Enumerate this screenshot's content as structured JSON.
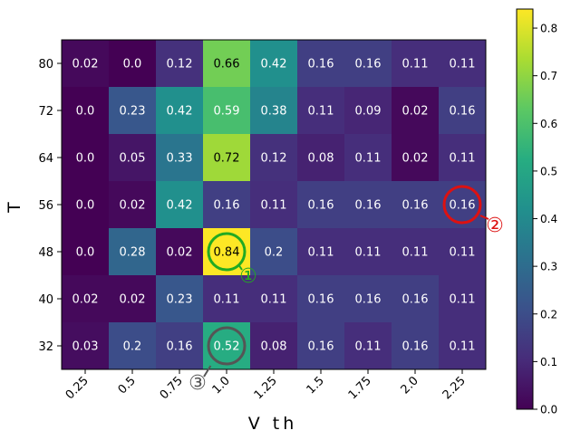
{
  "chart_data": {
    "type": "heatmap",
    "xlabel": "V th",
    "ylabel": "T",
    "x_ticks": [
      "0.25",
      "0.5",
      "0.75",
      "1.0",
      "1.25",
      "1.5",
      "1.75",
      "2.0",
      "2.25"
    ],
    "y_ticks": [
      "80",
      "72",
      "64",
      "56",
      "48",
      "40",
      "32"
    ],
    "values": [
      [
        0.02,
        0.0,
        0.12,
        0.66,
        0.42,
        0.16,
        0.16,
        0.11,
        0.11
      ],
      [
        0.0,
        0.23,
        0.42,
        0.59,
        0.38,
        0.11,
        0.09,
        0.02,
        0.16
      ],
      [
        0.0,
        0.05,
        0.33,
        0.72,
        0.12,
        0.08,
        0.11,
        0.02,
        0.11
      ],
      [
        0.0,
        0.02,
        0.42,
        0.16,
        0.11,
        0.16,
        0.16,
        0.16,
        0.16
      ],
      [
        0.0,
        0.28,
        0.02,
        0.84,
        0.2,
        0.11,
        0.11,
        0.11,
        0.11
      ],
      [
        0.02,
        0.02,
        0.23,
        0.11,
        0.11,
        0.16,
        0.16,
        0.16,
        0.11
      ],
      [
        0.03,
        0.2,
        0.16,
        0.52,
        0.08,
        0.16,
        0.11,
        0.16,
        0.11
      ]
    ],
    "value_labels": [
      [
        "0.02",
        "0.0",
        "0.12",
        "0.66",
        "0.42",
        "0.16",
        "0.16",
        "0.11",
        "0.11"
      ],
      [
        "0.0",
        "0.23",
        "0.42",
        "0.59",
        "0.38",
        "0.11",
        "0.09",
        "0.02",
        "0.16"
      ],
      [
        "0.0",
        "0.05",
        "0.33",
        "0.72",
        "0.12",
        "0.08",
        "0.11",
        "0.02",
        "0.11"
      ],
      [
        "0.0",
        "0.02",
        "0.42",
        "0.16",
        "0.11",
        "0.16",
        "0.16",
        "0.16",
        "0.16"
      ],
      [
        "0.0",
        "0.28",
        "0.02",
        "0.84",
        "0.2",
        "0.11",
        "0.11",
        "0.11",
        "0.11"
      ],
      [
        "0.02",
        "0.02",
        "0.23",
        "0.11",
        "0.11",
        "0.16",
        "0.16",
        "0.16",
        "0.11"
      ],
      [
        "0.03",
        "0.2",
        "0.16",
        "0.52",
        "0.08",
        "0.16",
        "0.11",
        "0.16",
        "0.11"
      ]
    ],
    "colorbar": {
      "colormap": "viridis",
      "range": [
        0.0,
        0.84
      ],
      "ticks": [
        0.0,
        0.1,
        0.2,
        0.3,
        0.4,
        0.5,
        0.6,
        0.7,
        0.8
      ],
      "tick_labels": [
        "0.0",
        "0.1",
        "0.2",
        "0.3",
        "0.4",
        "0.5",
        "0.6",
        "0.7",
        "0.8"
      ]
    },
    "annotations": [
      {
        "label": "①",
        "row": 4,
        "col": 3,
        "color": "#22aa22"
      },
      {
        "label": "②",
        "row": 3,
        "col": 8,
        "color": "#dd1111"
      },
      {
        "label": "③",
        "row": 6,
        "col": 3,
        "color": "#555555"
      }
    ],
    "grid": false
  }
}
